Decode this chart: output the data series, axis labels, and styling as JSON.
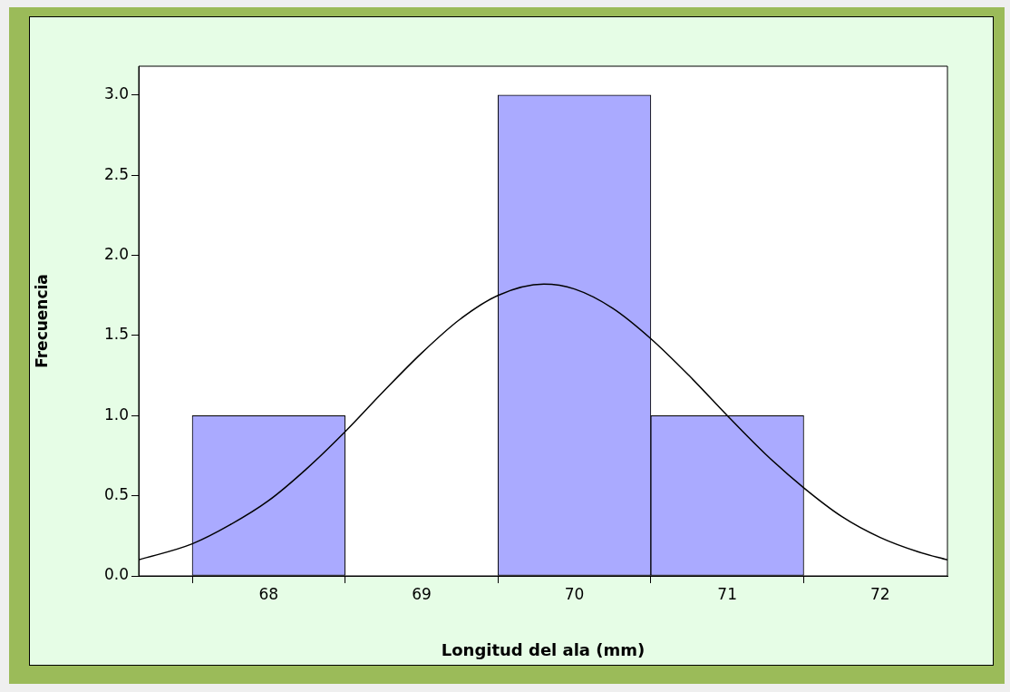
{
  "chart_data": {
    "type": "histogram",
    "xlabel": "Longitud del ala (mm)",
    "ylabel": "Frecuencia",
    "bins": [
      67.5,
      68.5,
      69.5,
      70.5,
      71.5
    ],
    "values": [
      1,
      0,
      3,
      1
    ],
    "color": "#aaaaff",
    "series": [
      {
        "type": "line",
        "color": "#000000",
        "x": [
          67.15,
          67.5,
          67.75,
          68,
          68.25,
          68.5,
          68.75,
          69,
          69.25,
          69.5,
          69.8,
          70,
          70.25,
          70.5,
          70.75,
          71,
          71.25,
          71.5,
          71.75,
          72,
          72.25,
          72.44
        ],
        "values": [
          0.1,
          0.2,
          0.32,
          0.47,
          0.67,
          0.9,
          1.15,
          1.39,
          1.6,
          1.75,
          1.82,
          1.79,
          1.67,
          1.48,
          1.25,
          1.0,
          0.76,
          0.55,
          0.37,
          0.24,
          0.15,
          0.1
        ]
      }
    ],
    "xlim": [
      67.15,
      72.44
    ],
    "ylim": [
      0,
      3.18
    ],
    "xticks": [
      68,
      69,
      70,
      71,
      72
    ],
    "yticks": [
      {
        "value": 0,
        "label": "0.0"
      },
      {
        "value": 0.5,
        "label": "0.5"
      },
      {
        "value": 1,
        "label": "1.0"
      },
      {
        "value": 1.5,
        "label": "1.5"
      },
      {
        "value": 2,
        "label": "2.0"
      },
      {
        "value": 2.5,
        "label": "2.5"
      },
      {
        "value": 3,
        "label": "3.0"
      }
    ],
    "grid": false,
    "legend": false,
    "marker": "none",
    "line_style": "solid"
  }
}
